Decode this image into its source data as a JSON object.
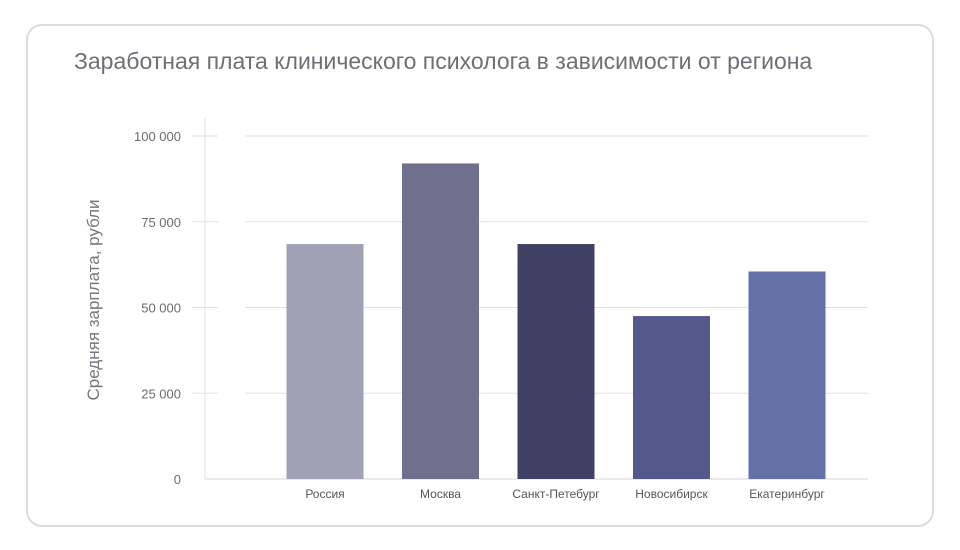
{
  "chart_data": {
    "type": "bar",
    "title": "Заработная плата клинического психолога в зависимости от региона",
    "xlabel": "",
    "ylabel": "Средняя зарплата, рубли",
    "categories": [
      "Россия",
      "Москва",
      "Санкт-Петебург",
      "Новосибирск",
      "Екатеринбург"
    ],
    "values": [
      68500,
      92000,
      68500,
      47500,
      60500
    ],
    "colors": [
      "#a1a1b6",
      "#6e708d",
      "#3e4064",
      "#55588b",
      "#6670a8"
    ],
    "ylim": [
      0,
      100000
    ],
    "yticks": [
      0,
      25000,
      50000,
      75000,
      100000
    ],
    "ytick_labels": [
      "0",
      "25 000",
      "50 000",
      "75 000",
      "100 000"
    ],
    "grid": true,
    "legend": false
  }
}
